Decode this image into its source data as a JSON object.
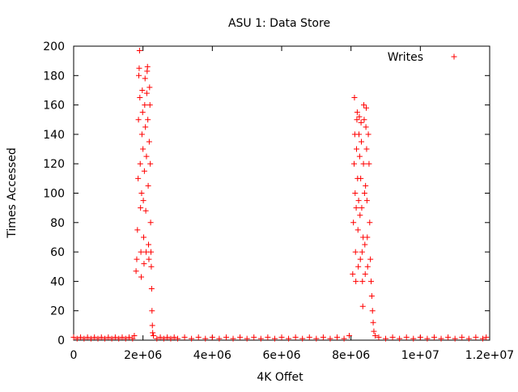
{
  "chart_data": {
    "type": "scatter",
    "title": "ASU 1: Data Store",
    "xlabel": "4K Offet",
    "ylabel": "Times Accessed",
    "xlim": [
      0,
      12000000
    ],
    "ylim": [
      0,
      200
    ],
    "x_ticks": [
      {
        "value": 0,
        "label": "0"
      },
      {
        "value": 2000000,
        "label": "2e+06"
      },
      {
        "value": 4000000,
        "label": "4e+06"
      },
      {
        "value": 6000000,
        "label": "6e+06"
      },
      {
        "value": 8000000,
        "label": "8e+06"
      },
      {
        "value": 10000000,
        "label": "1e+07"
      },
      {
        "value": 12000000,
        "label": "1.2e+07"
      }
    ],
    "y_ticks": [
      {
        "value": 0,
        "label": "0"
      },
      {
        "value": 20,
        "label": "20"
      },
      {
        "value": 40,
        "label": "40"
      },
      {
        "value": 60,
        "label": "60"
      },
      {
        "value": 80,
        "label": "80"
      },
      {
        "value": 100,
        "label": "100"
      },
      {
        "value": 120,
        "label": "120"
      },
      {
        "value": 140,
        "label": "140"
      },
      {
        "value": 160,
        "label": "160"
      },
      {
        "value": 180,
        "label": "180"
      },
      {
        "value": 200,
        "label": "200"
      }
    ],
    "grid": false,
    "legend": {
      "position": "top-right",
      "entries": [
        "Writes"
      ]
    },
    "marker": "+",
    "series": [
      {
        "name": "Writes",
        "color": "#ff0000",
        "points": [
          [
            0,
            2
          ],
          [
            100000,
            1
          ],
          [
            200000,
            2
          ],
          [
            300000,
            1
          ],
          [
            400000,
            2
          ],
          [
            500000,
            1
          ],
          [
            600000,
            2
          ],
          [
            700000,
            1
          ],
          [
            800000,
            2
          ],
          [
            900000,
            1
          ],
          [
            1000000,
            2
          ],
          [
            1100000,
            1
          ],
          [
            1200000,
            2
          ],
          [
            1300000,
            1
          ],
          [
            1400000,
            2
          ],
          [
            1500000,
            1
          ],
          [
            1600000,
            2
          ],
          [
            1700000,
            1
          ],
          [
            1750000,
            3
          ],
          [
            1800000,
            47
          ],
          [
            1820000,
            55
          ],
          [
            1840000,
            75
          ],
          [
            1860000,
            110
          ],
          [
            1870000,
            150
          ],
          [
            1880000,
            180
          ],
          [
            1890000,
            185
          ],
          [
            1900000,
            197
          ],
          [
            1910000,
            165
          ],
          [
            1920000,
            120
          ],
          [
            1930000,
            90
          ],
          [
            1940000,
            60
          ],
          [
            1950000,
            43
          ],
          [
            1960000,
            100
          ],
          [
            1970000,
            140
          ],
          [
            1980000,
            170
          ],
          [
            1990000,
            155
          ],
          [
            2000000,
            130
          ],
          [
            2010000,
            95
          ],
          [
            2020000,
            70
          ],
          [
            2030000,
            52
          ],
          [
            2040000,
            115
          ],
          [
            2050000,
            160
          ],
          [
            2060000,
            178
          ],
          [
            2070000,
            145
          ],
          [
            2080000,
            88
          ],
          [
            2090000,
            60
          ],
          [
            2100000,
            125
          ],
          [
            2110000,
            168
          ],
          [
            2120000,
            183
          ],
          [
            2130000,
            186
          ],
          [
            2140000,
            150
          ],
          [
            2150000,
            105
          ],
          [
            2160000,
            65
          ],
          [
            2170000,
            55
          ],
          [
            2180000,
            135
          ],
          [
            2190000,
            172
          ],
          [
            2200000,
            160
          ],
          [
            2210000,
            120
          ],
          [
            2220000,
            80
          ],
          [
            2230000,
            60
          ],
          [
            2240000,
            50
          ],
          [
            2250000,
            35
          ],
          [
            2260000,
            20
          ],
          [
            2270000,
            10
          ],
          [
            2280000,
            5
          ],
          [
            2300000,
            3
          ],
          [
            2400000,
            1
          ],
          [
            2500000,
            2
          ],
          [
            2600000,
            1
          ],
          [
            2700000,
            2
          ],
          [
            2800000,
            1
          ],
          [
            2900000,
            2
          ],
          [
            3000000,
            1
          ],
          [
            3200000,
            2
          ],
          [
            3400000,
            1
          ],
          [
            3600000,
            2
          ],
          [
            3800000,
            1
          ],
          [
            4000000,
            2
          ],
          [
            4200000,
            1
          ],
          [
            4400000,
            2
          ],
          [
            4600000,
            1
          ],
          [
            4800000,
            2
          ],
          [
            5000000,
            1
          ],
          [
            5200000,
            2
          ],
          [
            5400000,
            1
          ],
          [
            5600000,
            2
          ],
          [
            5800000,
            1
          ],
          [
            6000000,
            2
          ],
          [
            6200000,
            1
          ],
          [
            6400000,
            2
          ],
          [
            6600000,
            1
          ],
          [
            6800000,
            2
          ],
          [
            7000000,
            1
          ],
          [
            7200000,
            2
          ],
          [
            7400000,
            1
          ],
          [
            7600000,
            2
          ],
          [
            7800000,
            1
          ],
          [
            7950000,
            3
          ],
          [
            8050000,
            45
          ],
          [
            8070000,
            80
          ],
          [
            8090000,
            120
          ],
          [
            8100000,
            165
          ],
          [
            8110000,
            140
          ],
          [
            8120000,
            100
          ],
          [
            8130000,
            60
          ],
          [
            8140000,
            40
          ],
          [
            8150000,
            90
          ],
          [
            8160000,
            130
          ],
          [
            8170000,
            150
          ],
          [
            8180000,
            155
          ],
          [
            8190000,
            110
          ],
          [
            8200000,
            75
          ],
          [
            8210000,
            50
          ],
          [
            8220000,
            95
          ],
          [
            8230000,
            140
          ],
          [
            8240000,
            152
          ],
          [
            8250000,
            125
          ],
          [
            8260000,
            85
          ],
          [
            8270000,
            55
          ],
          [
            8280000,
            110
          ],
          [
            8290000,
            148
          ],
          [
            8300000,
            135
          ],
          [
            8310000,
            90
          ],
          [
            8320000,
            60
          ],
          [
            8330000,
            40
          ],
          [
            8340000,
            23
          ],
          [
            8350000,
            70
          ],
          [
            8360000,
            120
          ],
          [
            8370000,
            160
          ],
          [
            8380000,
            150
          ],
          [
            8390000,
            100
          ],
          [
            8400000,
            65
          ],
          [
            8410000,
            45
          ],
          [
            8420000,
            105
          ],
          [
            8430000,
            145
          ],
          [
            8440000,
            158
          ],
          [
            8450000,
            130
          ],
          [
            8460000,
            95
          ],
          [
            8470000,
            70
          ],
          [
            8480000,
            50
          ],
          [
            8500000,
            140
          ],
          [
            8520000,
            120
          ],
          [
            8540000,
            80
          ],
          [
            8560000,
            55
          ],
          [
            8580000,
            40
          ],
          [
            8600000,
            30
          ],
          [
            8620000,
            20
          ],
          [
            8640000,
            12
          ],
          [
            8660000,
            6
          ],
          [
            8700000,
            3
          ],
          [
            8800000,
            2
          ],
          [
            9000000,
            1
          ],
          [
            9200000,
            2
          ],
          [
            9400000,
            1
          ],
          [
            9600000,
            2
          ],
          [
            9800000,
            1
          ],
          [
            10000000,
            2
          ],
          [
            10200000,
            1
          ],
          [
            10400000,
            2
          ],
          [
            10600000,
            1
          ],
          [
            10800000,
            2
          ],
          [
            11000000,
            1
          ],
          [
            11200000,
            2
          ],
          [
            11400000,
            1
          ],
          [
            11600000,
            2
          ],
          [
            11800000,
            1
          ],
          [
            11900000,
            2
          ]
        ]
      }
    ]
  }
}
